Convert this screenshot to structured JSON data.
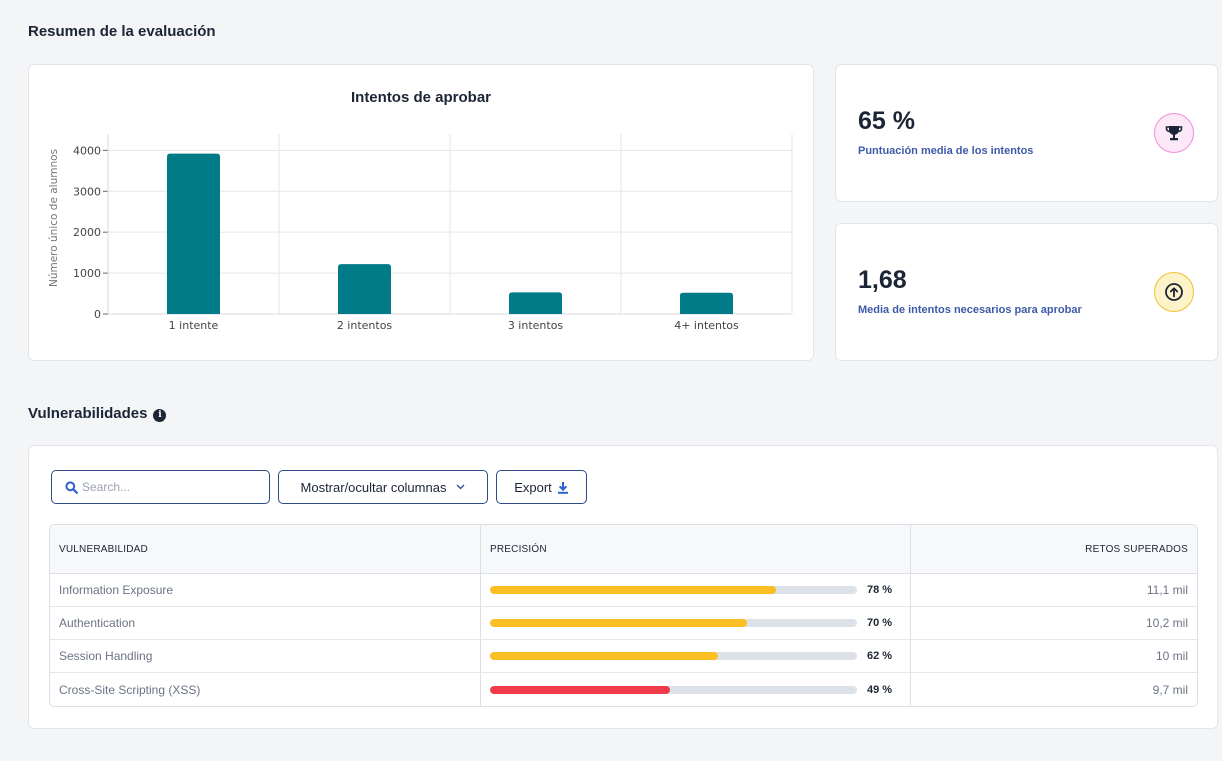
{
  "summary": {
    "title": "Resumen de la evaluación"
  },
  "chart_data": {
    "type": "bar",
    "title": "Intentos de aprobar",
    "xlabel": "",
    "ylabel": "Número único de alumnos",
    "categories": [
      "1 intente",
      "2 intentos",
      "3 intentos",
      "4+ intentos"
    ],
    "values": [
      3920,
      1220,
      530,
      520
    ],
    "ylim": [
      0,
      4400
    ],
    "yticks": [
      0,
      1000,
      2000,
      3000,
      4000
    ],
    "grid": true,
    "color": "#007b87"
  },
  "stats": [
    {
      "value": "65 %",
      "label": "Puntuación media de los intentos",
      "icon": "trophy-icon",
      "icon_bg": "#fce8f7",
      "icon_border": "#ee8fdc"
    },
    {
      "value": "1,68",
      "label": "Media de intentos necesarios para aprobar",
      "icon": "arrow-up-circle-icon",
      "icon_bg": "#fdf3c8",
      "icon_border": "#f0c12e"
    }
  ],
  "vulnerabilities": {
    "title": "Vulnerabilidades",
    "search_placeholder": "Search...",
    "columns_button": "Mostrar/ocultar columnas",
    "export_button": "Export",
    "columns": [
      "VULNERABILIDAD",
      "PRECISIÓN",
      "RETOS SUPERADOS"
    ],
    "rows": [
      {
        "name": "Information Exposure",
        "precision": 0.78,
        "precision_label": "78 %",
        "color": "#fbbf24",
        "passed": "11,1 mil"
      },
      {
        "name": "Authentication",
        "precision": 0.7,
        "precision_label": "70 %",
        "color": "#fbbf24",
        "passed": "10,2 mil"
      },
      {
        "name": "Session Handling",
        "precision": 0.62,
        "precision_label": "62 %",
        "color": "#fbbf24",
        "passed": "10 mil"
      },
      {
        "name": "Cross-Site Scripting (XSS)",
        "precision": 0.49,
        "precision_label": "49 %",
        "color": "#ef3b4a",
        "passed": "9,7 mil"
      }
    ]
  }
}
